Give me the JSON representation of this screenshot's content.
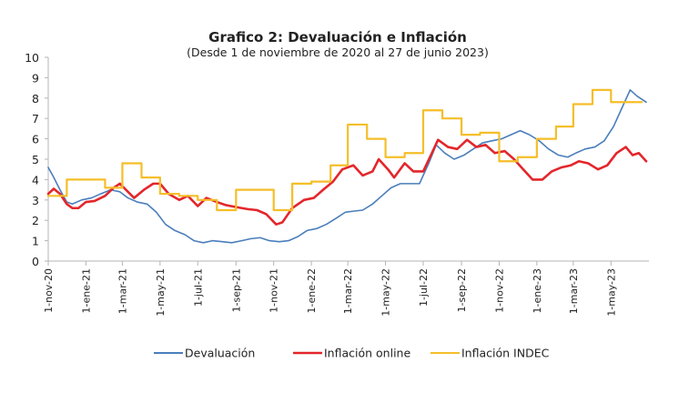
{
  "chart_data": {
    "type": "line",
    "title": "Grafico 2: Devaluación e Inflación",
    "subtitle": "(Desde 1 de noviembre de 2020 al 27 de junio 2023)",
    "xlabel": "",
    "ylabel": "",
    "ylim": [
      0,
      10
    ],
    "yticks": [
      "0",
      "1",
      "2",
      "3",
      "4",
      "5",
      "6",
      "7",
      "8",
      "9",
      "10"
    ],
    "x_range": [
      "2020-11-01",
      "2023-06-27"
    ],
    "xticks": [
      {
        "date": "2020-11-01",
        "label": "1-nov-20"
      },
      {
        "date": "2021-01-01",
        "label": "1-ene-21"
      },
      {
        "date": "2021-03-01",
        "label": "1-mar-21"
      },
      {
        "date": "2021-05-01",
        "label": "1-may-21"
      },
      {
        "date": "2021-07-01",
        "label": "1-jul-21"
      },
      {
        "date": "2021-09-01",
        "label": "1-sep-21"
      },
      {
        "date": "2021-11-01",
        "label": "1-nov-21"
      },
      {
        "date": "2022-01-01",
        "label": "1-ene-22"
      },
      {
        "date": "2022-03-01",
        "label": "1-mar-22"
      },
      {
        "date": "2022-05-01",
        "label": "1-may-22"
      },
      {
        "date": "2022-07-01",
        "label": "1-jul-22"
      },
      {
        "date": "2022-09-01",
        "label": "1-sep-22"
      },
      {
        "date": "2022-11-01",
        "label": "1-nov-22"
      },
      {
        "date": "2023-01-01",
        "label": "1-ene-23"
      },
      {
        "date": "2023-03-01",
        "label": "1-mar-23"
      },
      {
        "date": "2023-05-01",
        "label": "1-may-23"
      }
    ],
    "grid": false,
    "legend": "bottom",
    "series": [
      {
        "name": "Devaluación",
        "color": "#4a7ebb",
        "step": false,
        "points": [
          [
            "2020-11-01",
            4.6
          ],
          [
            "2020-11-10",
            4.1
          ],
          [
            "2020-11-20",
            3.5
          ],
          [
            "2020-12-01",
            2.9
          ],
          [
            "2020-12-10",
            2.8
          ],
          [
            "2020-12-25",
            3.0
          ],
          [
            "2021-01-10",
            3.1
          ],
          [
            "2021-01-25",
            3.3
          ],
          [
            "2021-02-10",
            3.5
          ],
          [
            "2021-02-25",
            3.4
          ],
          [
            "2021-03-10",
            3.1
          ],
          [
            "2021-03-25",
            2.9
          ],
          [
            "2021-04-10",
            2.8
          ],
          [
            "2021-04-25",
            2.4
          ],
          [
            "2021-05-10",
            1.8
          ],
          [
            "2021-05-25",
            1.5
          ],
          [
            "2021-06-10",
            1.3
          ],
          [
            "2021-06-25",
            1.0
          ],
          [
            "2021-07-10",
            0.9
          ],
          [
            "2021-07-25",
            1.0
          ],
          [
            "2021-08-10",
            0.95
          ],
          [
            "2021-08-25",
            0.9
          ],
          [
            "2021-09-10",
            1.0
          ],
          [
            "2021-09-25",
            1.1
          ],
          [
            "2021-10-10",
            1.15
          ],
          [
            "2021-10-25",
            1.0
          ],
          [
            "2021-11-10",
            0.95
          ],
          [
            "2021-11-25",
            1.0
          ],
          [
            "2021-12-10",
            1.2
          ],
          [
            "2021-12-25",
            1.5
          ],
          [
            "2022-01-10",
            1.6
          ],
          [
            "2022-01-25",
            1.8
          ],
          [
            "2022-02-10",
            2.1
          ],
          [
            "2022-02-25",
            2.4
          ],
          [
            "2022-03-10",
            2.45
          ],
          [
            "2022-03-25",
            2.5
          ],
          [
            "2022-04-10",
            2.8
          ],
          [
            "2022-04-25",
            3.2
          ],
          [
            "2022-05-10",
            3.6
          ],
          [
            "2022-05-25",
            3.8
          ],
          [
            "2022-06-10",
            3.8
          ],
          [
            "2022-06-25",
            3.8
          ],
          [
            "2022-07-10",
            4.8
          ],
          [
            "2022-07-22",
            5.7
          ],
          [
            "2022-08-05",
            5.3
          ],
          [
            "2022-08-20",
            5.0
          ],
          [
            "2022-09-05",
            5.2
          ],
          [
            "2022-09-20",
            5.5
          ],
          [
            "2022-10-05",
            5.8
          ],
          [
            "2022-10-20",
            5.9
          ],
          [
            "2022-11-05",
            6.0
          ],
          [
            "2022-11-20",
            6.2
          ],
          [
            "2022-12-05",
            6.4
          ],
          [
            "2022-12-20",
            6.2
          ],
          [
            "2023-01-05",
            5.9
          ],
          [
            "2023-01-20",
            5.5
          ],
          [
            "2023-02-05",
            5.2
          ],
          [
            "2023-02-20",
            5.1
          ],
          [
            "2023-03-05",
            5.3
          ],
          [
            "2023-03-20",
            5.5
          ],
          [
            "2023-04-05",
            5.6
          ],
          [
            "2023-04-20",
            5.9
          ],
          [
            "2023-05-05",
            6.6
          ],
          [
            "2023-05-20",
            7.6
          ],
          [
            "2023-06-01",
            8.4
          ],
          [
            "2023-06-12",
            8.1
          ],
          [
            "2023-06-27",
            7.8
          ]
        ]
      },
      {
        "name": "Inflación online",
        "color": "#e3262b",
        "step": false,
        "points": [
          [
            "2020-11-01",
            3.3
          ],
          [
            "2020-11-10",
            3.55
          ],
          [
            "2020-11-20",
            3.3
          ],
          [
            "2020-12-01",
            2.8
          ],
          [
            "2020-12-10",
            2.6
          ],
          [
            "2020-12-20",
            2.6
          ],
          [
            "2021-01-01",
            2.9
          ],
          [
            "2021-01-15",
            2.95
          ],
          [
            "2021-02-01",
            3.2
          ],
          [
            "2021-02-15",
            3.6
          ],
          [
            "2021-02-25",
            3.8
          ],
          [
            "2021-03-10",
            3.4
          ],
          [
            "2021-03-20",
            3.1
          ],
          [
            "2021-04-05",
            3.5
          ],
          [
            "2021-04-20",
            3.8
          ],
          [
            "2021-05-01",
            3.8
          ],
          [
            "2021-05-15",
            3.3
          ],
          [
            "2021-06-01",
            3.0
          ],
          [
            "2021-06-15",
            3.2
          ],
          [
            "2021-07-01",
            2.7
          ],
          [
            "2021-07-15",
            3.1
          ],
          [
            "2021-08-01",
            2.9
          ],
          [
            "2021-08-15",
            2.75
          ],
          [
            "2021-09-01",
            2.65
          ],
          [
            "2021-09-20",
            2.55
          ],
          [
            "2021-10-05",
            2.5
          ],
          [
            "2021-10-20",
            2.3
          ],
          [
            "2021-11-05",
            1.8
          ],
          [
            "2021-11-15",
            1.9
          ],
          [
            "2021-12-01",
            2.6
          ],
          [
            "2021-12-20",
            3.0
          ],
          [
            "2022-01-05",
            3.1
          ],
          [
            "2022-01-20",
            3.5
          ],
          [
            "2022-02-05",
            3.9
          ],
          [
            "2022-02-20",
            4.5
          ],
          [
            "2022-03-10",
            4.7
          ],
          [
            "2022-03-25",
            4.2
          ],
          [
            "2022-04-10",
            4.4
          ],
          [
            "2022-04-20",
            5.0
          ],
          [
            "2022-05-05",
            4.5
          ],
          [
            "2022-05-15",
            4.1
          ],
          [
            "2022-06-01",
            4.8
          ],
          [
            "2022-06-15",
            4.4
          ],
          [
            "2022-07-01",
            4.4
          ],
          [
            "2022-07-15",
            5.3
          ],
          [
            "2022-07-25",
            5.95
          ],
          [
            "2022-08-10",
            5.6
          ],
          [
            "2022-08-25",
            5.5
          ],
          [
            "2022-09-10",
            5.95
          ],
          [
            "2022-09-25",
            5.6
          ],
          [
            "2022-10-10",
            5.7
          ],
          [
            "2022-10-25",
            5.3
          ],
          [
            "2022-11-10",
            5.4
          ],
          [
            "2022-11-25",
            5.0
          ],
          [
            "2022-12-10",
            4.5
          ],
          [
            "2022-12-25",
            4.0
          ],
          [
            "2023-01-10",
            4.0
          ],
          [
            "2023-01-25",
            4.4
          ],
          [
            "2023-02-10",
            4.6
          ],
          [
            "2023-02-25",
            4.7
          ],
          [
            "2023-03-10",
            4.9
          ],
          [
            "2023-03-25",
            4.8
          ],
          [
            "2023-04-10",
            4.5
          ],
          [
            "2023-04-25",
            4.7
          ],
          [
            "2023-05-10",
            5.3
          ],
          [
            "2023-05-25",
            5.6
          ],
          [
            "2023-06-05",
            5.2
          ],
          [
            "2023-06-15",
            5.3
          ],
          [
            "2023-06-27",
            4.9
          ]
        ]
      },
      {
        "name": "Inflación INDEC",
        "color": "#f5be29",
        "step": true,
        "points": [
          [
            "2020-11-01",
            3.2
          ],
          [
            "2020-12-01",
            4.0
          ],
          [
            "2021-01-01",
            4.0
          ],
          [
            "2021-02-01",
            3.6
          ],
          [
            "2021-03-01",
            4.8
          ],
          [
            "2021-04-01",
            4.1
          ],
          [
            "2021-05-01",
            3.3
          ],
          [
            "2021-06-01",
            3.2
          ],
          [
            "2021-07-01",
            3.0
          ],
          [
            "2021-08-01",
            2.5
          ],
          [
            "2021-09-01",
            3.5
          ],
          [
            "2021-10-01",
            3.5
          ],
          [
            "2021-11-01",
            2.5
          ],
          [
            "2021-12-01",
            3.8
          ],
          [
            "2022-01-01",
            3.9
          ],
          [
            "2022-02-01",
            4.7
          ],
          [
            "2022-03-01",
            6.7
          ],
          [
            "2022-04-01",
            6.0
          ],
          [
            "2022-05-01",
            5.1
          ],
          [
            "2022-06-01",
            5.3
          ],
          [
            "2022-07-01",
            7.4
          ],
          [
            "2022-08-01",
            7.0
          ],
          [
            "2022-09-01",
            6.2
          ],
          [
            "2022-10-01",
            6.3
          ],
          [
            "2022-11-01",
            4.9
          ],
          [
            "2022-12-01",
            5.1
          ],
          [
            "2023-01-01",
            6.0
          ],
          [
            "2023-02-01",
            6.6
          ],
          [
            "2023-03-01",
            7.7
          ],
          [
            "2023-04-01",
            8.4
          ],
          [
            "2023-05-01",
            7.8
          ],
          [
            "2023-06-01",
            7.8
          ]
        ],
        "end": "2023-06-20"
      }
    ]
  }
}
